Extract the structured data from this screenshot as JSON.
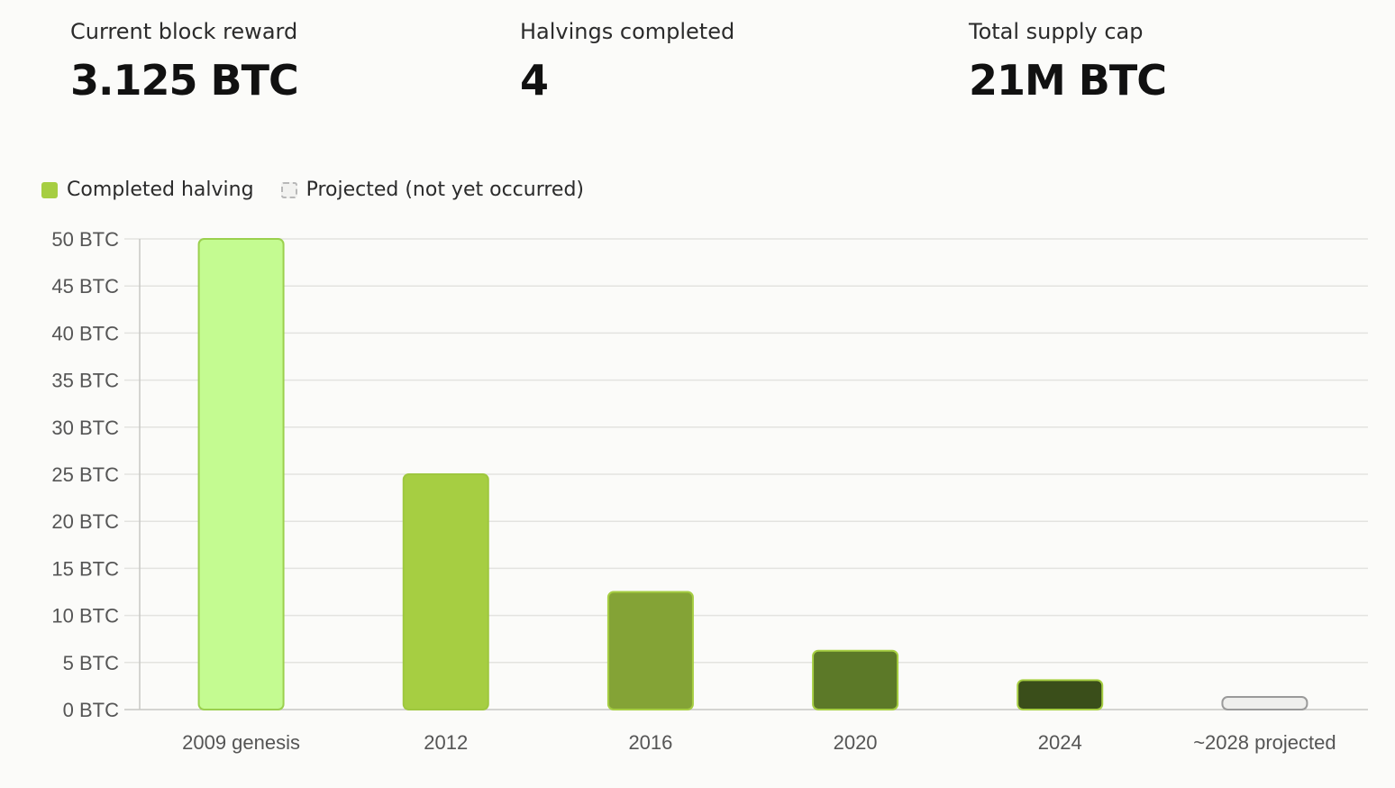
{
  "stats": [
    {
      "label": "Current block reward",
      "value": "3.125 BTC"
    },
    {
      "label": "Halvings completed",
      "value": "4"
    },
    {
      "label": "Total supply cap",
      "value": "21M BTC"
    }
  ],
  "legend": {
    "completed_label": "Completed halving",
    "projected_label": "Projected (not yet occurred)"
  },
  "colors": {
    "grid": "#e3e3e0",
    "axis": "#c8c8c4",
    "tick_text": "#555555",
    "projected_fill": "#efefed",
    "projected_stroke": "#9a9a9a"
  },
  "chart_data": {
    "type": "bar",
    "categories": [
      "2009 genesis",
      "2012",
      "2016",
      "2020",
      "2024",
      "~2028 projected"
    ],
    "values": [
      50,
      25,
      12.5,
      6.25,
      3.125,
      1.5625
    ],
    "status": [
      "completed",
      "completed",
      "completed",
      "completed",
      "completed",
      "projected"
    ],
    "bar_colors": [
      "#c4fb91",
      "#a6ce42",
      "#84a336",
      "#5c7928",
      "#3a4e1a",
      "#efefed"
    ],
    "bar_strokes": [
      "#9bd04e",
      "#9ec73e",
      "#a6ce42",
      "#a6ce42",
      "#a6ce42",
      "#9a9a9a"
    ],
    "y_ticks": [
      0,
      5,
      10,
      15,
      20,
      25,
      30,
      35,
      40,
      45,
      50
    ],
    "y_tick_labels": [
      "0 BTC",
      "5 BTC",
      "10 BTC",
      "15 BTC",
      "20 BTC",
      "25 BTC",
      "30 BTC",
      "35 BTC",
      "40 BTC",
      "45 BTC",
      "50 BTC"
    ],
    "ylim": [
      0,
      50
    ],
    "grid": true,
    "legend_position": "top-left"
  }
}
